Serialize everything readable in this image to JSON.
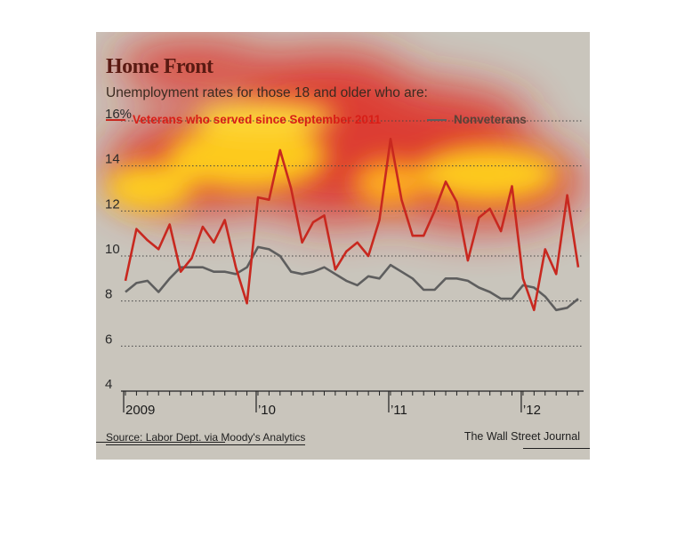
{
  "header": {
    "title": "Home Front",
    "subtitle": "Unemployment rates for those 18 and older who are:"
  },
  "legend": {
    "veterans": "Veterans who served since September 2011",
    "nonveterans": "Nonveterans"
  },
  "footer": {
    "source": "Source: Labor Dept. via Moody's Analytics",
    "credit": "The Wall Street Journal"
  },
  "colors": {
    "veterans": "#c8281f",
    "nonveterans": "#5e5e5e",
    "background": "#c9c5bc"
  },
  "chart_data": {
    "type": "line",
    "title": "Home Front",
    "subtitle": "Unemployment rates for those 18 and older who are:",
    "ylabel": "",
    "ylim": [
      4,
      16
    ],
    "y_ticks": [
      4,
      6,
      8,
      10,
      12,
      14,
      16
    ],
    "y_tick_labels": [
      "4",
      "6",
      "8",
      "10",
      "12",
      "14",
      "16%"
    ],
    "x_ticks": [
      {
        "month_index": 0,
        "label": "2009"
      },
      {
        "month_index": 12,
        "label": "’10"
      },
      {
        "month_index": 24,
        "label": "’11"
      },
      {
        "month_index": 36,
        "label": "’12"
      }
    ],
    "x_range": [
      "2009-01",
      "2012-05"
    ],
    "grid": "horizontal dotted",
    "legend_position": "top",
    "series": [
      {
        "name": "Veterans who served since September 2011",
        "color": "#c8281f",
        "values": [
          8.9,
          11.2,
          10.7,
          10.3,
          11.4,
          9.3,
          9.9,
          11.3,
          10.6,
          11.6,
          9.5,
          7.9,
          12.6,
          12.5,
          14.7,
          13.0,
          10.6,
          11.5,
          11.8,
          9.4,
          10.2,
          10.6,
          10.0,
          11.6,
          15.2,
          12.5,
          10.9,
          10.9,
          12.0,
          13.3,
          12.4,
          9.8,
          11.7,
          12.1,
          11.1,
          13.1,
          9.0,
          7.6,
          10.3,
          9.2,
          12.7,
          9.5
        ]
      },
      {
        "name": "Nonveterans",
        "color": "#5e5e5e",
        "values": [
          8.4,
          8.8,
          8.9,
          8.4,
          9.0,
          9.5,
          9.5,
          9.5,
          9.3,
          9.3,
          9.2,
          9.5,
          10.4,
          10.3,
          10.0,
          9.3,
          9.2,
          9.3,
          9.5,
          9.2,
          8.9,
          8.7,
          9.1,
          9.0,
          9.6,
          9.3,
          9.0,
          8.5,
          8.5,
          9.0,
          9.0,
          8.9,
          8.6,
          8.4,
          8.1,
          8.1,
          8.7,
          8.6,
          8.2,
          7.6,
          7.7,
          8.1
        ]
      }
    ]
  }
}
